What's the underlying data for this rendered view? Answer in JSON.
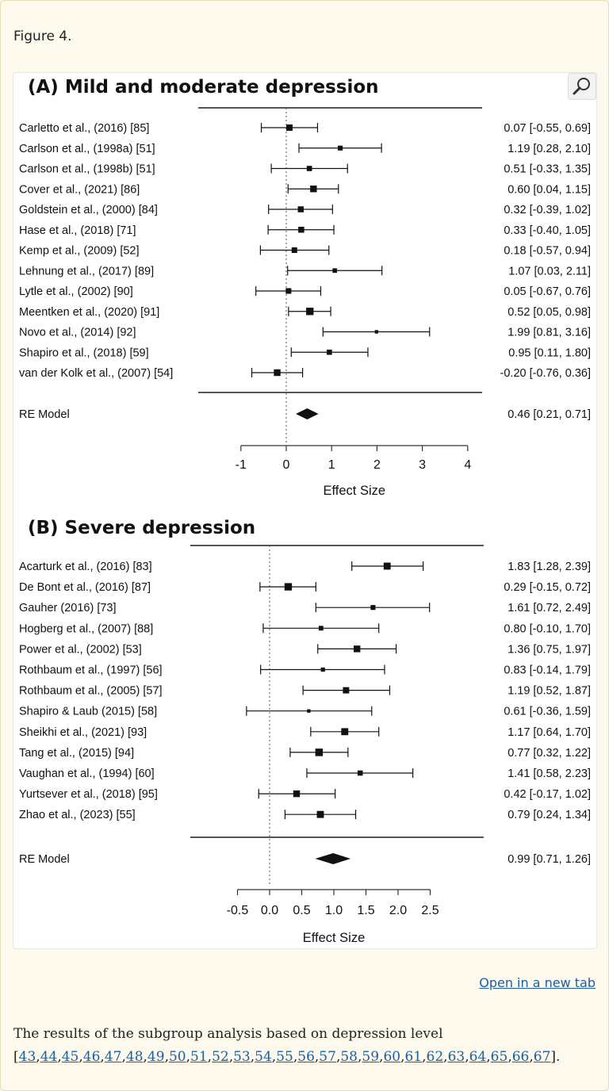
{
  "figure_label": "Figure 4.",
  "open_new_tab": "Open in a new tab",
  "caption": {
    "text": "The results of the subgroup analysis based on depression level",
    "open": "[",
    "close": "].",
    "refs": [
      "43",
      "44",
      "45",
      "46",
      "47",
      "48",
      "49",
      "50",
      "51",
      "52",
      "53",
      "54",
      "55",
      "56",
      "57",
      "58",
      "59",
      "60",
      "61",
      "62",
      "63",
      "64",
      "65",
      "66",
      "67"
    ]
  },
  "chart_data": [
    {
      "type": "forest",
      "title": "(A) Mild and moderate depression",
      "xlabel": "Effect Size",
      "xlim": [
        -1,
        4
      ],
      "ticks": [
        "-1",
        "0",
        "1",
        "2",
        "3",
        "4"
      ],
      "tick_values": [
        -1,
        0,
        1,
        2,
        3,
        4
      ],
      "studies": [
        {
          "label": "Carletto et al., (2016) [85]",
          "est": 0.07,
          "lo": -0.55,
          "hi": 0.69,
          "ci": "0.07 [-0.55, 0.69]",
          "w": 0.55
        },
        {
          "label": "Carlson et al., (1998a) [51]",
          "est": 1.19,
          "lo": 0.28,
          "hi": 2.1,
          "ci": "1.19 [0.28, 2.10]",
          "w": 0.35
        },
        {
          "label": "Carlson et al., (1998b) [51]",
          "est": 0.51,
          "lo": -0.33,
          "hi": 1.35,
          "ci": "0.51 [-0.33, 1.35]",
          "w": 0.4
        },
        {
          "label": "Cover et al., (2021) [86]",
          "est": 0.6,
          "lo": 0.04,
          "hi": 1.15,
          "ci": "0.60 [0.04, 1.15]",
          "w": 0.6
        },
        {
          "label": "Goldstein et al., (2000) [84]",
          "est": 0.32,
          "lo": -0.39,
          "hi": 1.02,
          "ci": "0.32 [-0.39, 1.02]",
          "w": 0.5
        },
        {
          "label": "Hase et al., (2018) [71]",
          "est": 0.33,
          "lo": -0.4,
          "hi": 1.05,
          "ci": "0.33 [-0.40, 1.05]",
          "w": 0.5
        },
        {
          "label": "Kemp et al., (2009) [52]",
          "est": 0.18,
          "lo": -0.57,
          "hi": 0.94,
          "ci": "0.18 [-0.57, 0.94]",
          "w": 0.45
        },
        {
          "label": "Lehnung et al., (2017) [89]",
          "est": 1.07,
          "lo": 0.03,
          "hi": 2.11,
          "ci": "1.07 [0.03, 2.11]",
          "w": 0.3
        },
        {
          "label": "Lytle et al., (2002) [90]",
          "est": 0.05,
          "lo": -0.67,
          "hi": 0.76,
          "ci": "0.05 [-0.67, 0.76]",
          "w": 0.45
        },
        {
          "label": "Meentken et al., (2020) [91]",
          "est": 0.52,
          "lo": 0.05,
          "hi": 0.98,
          "ci": "0.52 [0.05, 0.98]",
          "w": 0.7
        },
        {
          "label": "Novo et al., (2014) [92]",
          "est": 1.99,
          "lo": 0.81,
          "hi": 3.16,
          "ci": "1.99 [0.81, 3.16]",
          "w": 0.15
        },
        {
          "label": "Shapiro et al., (2018) [59]",
          "est": 0.95,
          "lo": 0.11,
          "hi": 1.8,
          "ci": "0.95 [0.11, 1.80]",
          "w": 0.4
        },
        {
          "label": "van der Kolk et al., (2007) [54]",
          "est": -0.2,
          "lo": -0.76,
          "hi": 0.36,
          "ci": "-0.20 [-0.76, 0.36]",
          "w": 0.6
        }
      ],
      "summary": {
        "label": "RE Model",
        "est": 0.46,
        "lo": 0.21,
        "hi": 0.71,
        "ci": "0.46 [0.21, 0.71]"
      }
    },
    {
      "type": "forest",
      "title": "(B) Severe depression",
      "xlabel": "Effect Size",
      "xlim": [
        -0.5,
        2.5
      ],
      "ticks": [
        "-0.5",
        "0.0",
        "0.5",
        "1.0",
        "1.5",
        "2.0",
        "2.5"
      ],
      "tick_values": [
        -0.5,
        0,
        0.5,
        1,
        1.5,
        2,
        2.5
      ],
      "studies": [
        {
          "label": "Acarturk et al., (2016) [83]",
          "est": 1.83,
          "lo": 1.28,
          "hi": 2.39,
          "ci": "1.83 [1.28, 2.39]",
          "w": 0.65
        },
        {
          "label": "De Bont et al., (2016) [87]",
          "est": 0.29,
          "lo": -0.15,
          "hi": 0.72,
          "ci": "0.29 [-0.15, 0.72]",
          "w": 0.7
        },
        {
          "label": "Gauher (2016) [73]",
          "est": 1.61,
          "lo": 0.72,
          "hi": 2.49,
          "ci": "1.61 [0.72, 2.49]",
          "w": 0.35
        },
        {
          "label": "Hogberg et al., (2007) [88]",
          "est": 0.8,
          "lo": -0.1,
          "hi": 1.7,
          "ci": "0.80 [-0.10, 1.70]",
          "w": 0.32
        },
        {
          "label": "Power et al., (2002) [53]",
          "est": 1.36,
          "lo": 0.75,
          "hi": 1.97,
          "ci": "1.36 [0.75, 1.97]",
          "w": 0.6
        },
        {
          "label": "Rothbaum et al., (1997) [56]",
          "est": 0.83,
          "lo": -0.14,
          "hi": 1.79,
          "ci": "0.83 [-0.14, 1.79]",
          "w": 0.25
        },
        {
          "label": "Rothbaum et al., (2005) [57]",
          "est": 1.19,
          "lo": 0.52,
          "hi": 1.87,
          "ci": "1.19 [0.52, 1.87]",
          "w": 0.55
        },
        {
          "label": "Shapiro & Laub (2015) [58]",
          "est": 0.61,
          "lo": -0.36,
          "hi": 1.59,
          "ci": "0.61 [-0.36, 1.59]",
          "w": 0.15
        },
        {
          "label": "Sheikhi et al., (2021) [93]",
          "est": 1.17,
          "lo": 0.64,
          "hi": 1.7,
          "ci": "1.17 [0.64, 1.70]",
          "w": 0.65
        },
        {
          "label": "Tang et al., (2015) [94]",
          "est": 0.77,
          "lo": 0.32,
          "hi": 1.22,
          "ci": "0.77 [0.32, 1.22]",
          "w": 0.72
        },
        {
          "label": "Vaughan et al., (1994) [60]",
          "est": 1.41,
          "lo": 0.58,
          "hi": 2.23,
          "ci": "1.41 [0.58, 2.23]",
          "w": 0.4
        },
        {
          "label": "Yurtsever et al., (2018) [95]",
          "est": 0.42,
          "lo": -0.17,
          "hi": 1.02,
          "ci": "0.42 [-0.17, 1.02]",
          "w": 0.6
        },
        {
          "label": "Zhao et al., (2023) [55]",
          "est": 0.79,
          "lo": 0.24,
          "hi": 1.34,
          "ci": "0.79 [0.24, 1.34]",
          "w": 0.65
        }
      ],
      "summary": {
        "label": "RE Model",
        "est": 0.99,
        "lo": 0.71,
        "hi": 1.26,
        "ci": "0.99 [0.71, 1.26]"
      }
    }
  ]
}
